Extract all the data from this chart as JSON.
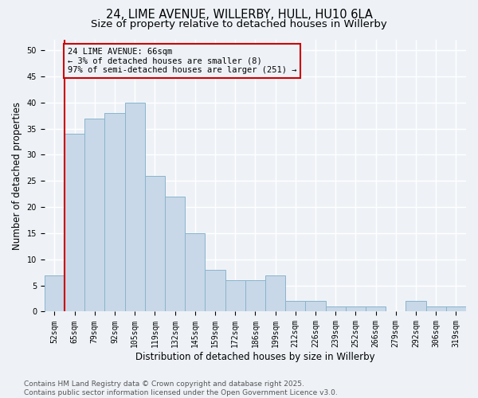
{
  "title_line1": "24, LIME AVENUE, WILLERBY, HULL, HU10 6LA",
  "title_line2": "Size of property relative to detached houses in Willerby",
  "xlabel": "Distribution of detached houses by size in Willerby",
  "ylabel": "Number of detached properties",
  "categories": [
    "52sqm",
    "65sqm",
    "79sqm",
    "92sqm",
    "105sqm",
    "119sqm",
    "132sqm",
    "145sqm",
    "159sqm",
    "172sqm",
    "186sqm",
    "199sqm",
    "212sqm",
    "226sqm",
    "239sqm",
    "252sqm",
    "266sqm",
    "279sqm",
    "292sqm",
    "306sqm",
    "319sqm"
  ],
  "values": [
    7,
    34,
    37,
    38,
    40,
    26,
    22,
    15,
    8,
    6,
    6,
    7,
    2,
    2,
    1,
    1,
    1,
    0,
    2,
    1,
    1
  ],
  "bar_color": "#c8d8e8",
  "bar_edge_color": "#8ab4cc",
  "annotation_box_text": "24 LIME AVENUE: 66sqm\n← 3% of detached houses are smaller (8)\n97% of semi-detached houses are larger (251) →",
  "annotation_box_color": "#cc0000",
  "vline_bar_index": 1,
  "vline_color": "#cc0000",
  "ylim_max": 52,
  "yticks": [
    0,
    5,
    10,
    15,
    20,
    25,
    30,
    35,
    40,
    45,
    50
  ],
  "background_color": "#eef2f7",
  "grid_color": "#ffffff",
  "footer_text": "Contains HM Land Registry data © Crown copyright and database right 2025.\nContains public sector information licensed under the Open Government Licence v3.0.",
  "title_fontsize": 10.5,
  "subtitle_fontsize": 9.5,
  "tick_fontsize": 7,
  "ylabel_fontsize": 8.5,
  "xlabel_fontsize": 8.5,
  "footer_fontsize": 6.5,
  "ann_fontsize": 7.5
}
